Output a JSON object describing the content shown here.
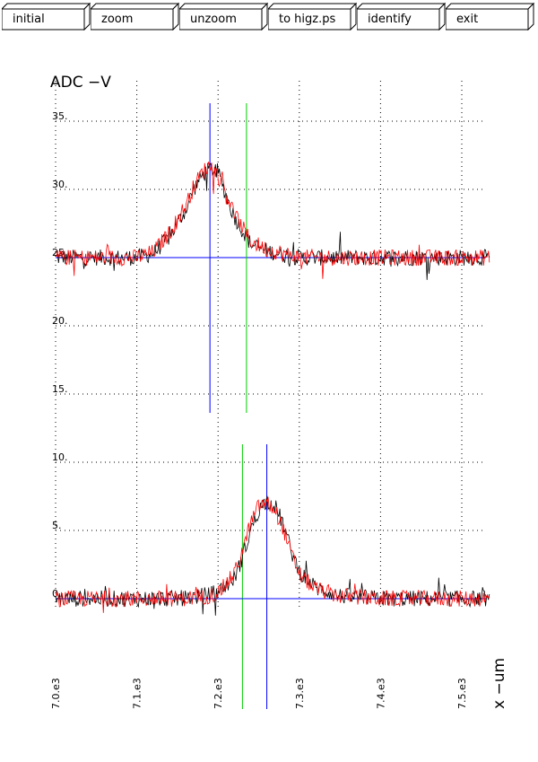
{
  "toolbar": {
    "buttons": [
      {
        "label": "initial"
      },
      {
        "label": "zoom"
      },
      {
        "label": "unzoom"
      },
      {
        "label": "to higz.ps"
      },
      {
        "label": "identify"
      },
      {
        "label": "exit"
      }
    ]
  },
  "colors": {
    "trace_a": "#000000",
    "trace_b": "#ff0000",
    "marker_blue": "#0000ff",
    "marker_green": "#00cc00",
    "grid": "#000000"
  },
  "chart_data": {
    "type": "line",
    "ylabel": "ADC  −V",
    "xlabel": "x  −um",
    "grid": true,
    "xlim": [
      7000,
      7550
    ],
    "ylim": [
      -4,
      37
    ],
    "x_ticks": [
      "7.0.e3",
      "7.1.e3",
      "7.2.e3",
      "7.3.e3",
      "7.4.e3",
      "7.5.e3"
    ],
    "x_tick_values": [
      7000,
      7100,
      7200,
      7300,
      7400,
      7500
    ],
    "y_ticks": [
      "0.",
      "5.",
      "10.",
      "15.",
      "20.",
      "25.",
      "30.",
      "35."
    ],
    "y_tick_values": [
      0,
      5,
      10,
      15,
      20,
      25,
      30,
      35
    ],
    "panels": [
      {
        "name": "upper",
        "baseline": 25,
        "peak_x": 7190,
        "peak_y": 31.5,
        "series": [
          {
            "color": "black",
            "x": [
              7000,
              7050,
              7100,
              7120,
              7140,
              7160,
              7170,
              7180,
              7190,
              7200,
              7210,
              7220,
              7230,
              7240,
              7260,
              7280,
              7300,
              7350,
              7400,
              7450,
              7500,
              7550
            ],
            "y": [
              25,
              25,
              25,
              25.3,
              26.5,
              28.5,
              30,
              31,
              31.5,
              31.3,
              29.5,
              28,
              27,
              26,
              25.5,
              25.2,
              25,
              25,
              25,
              25,
              25,
              25
            ]
          },
          {
            "color": "red",
            "x": [
              7000,
              7050,
              7100,
              7120,
              7140,
              7160,
              7170,
              7180,
              7190,
              7200,
              7210,
              7220,
              7230,
              7240,
              7260,
              7280,
              7300,
              7350,
              7400,
              7450,
              7500,
              7550
            ],
            "y": [
              25,
              25,
              25,
              25.4,
              26.8,
              28.8,
              30.2,
              31.2,
              31.8,
              31.0,
              29.8,
              28.2,
              27.2,
              26.2,
              25.6,
              25.3,
              25,
              25,
              25,
              25,
              25,
              25
            ]
          }
        ],
        "markers": [
          {
            "color": "blue",
            "x": 7190,
            "y": 25
          },
          {
            "color": "green",
            "x": 7235
          }
        ]
      },
      {
        "name": "lower",
        "baseline": 0,
        "peak_x": 7260,
        "peak_y": 7.2,
        "series": [
          {
            "color": "black",
            "x": [
              7000,
              7050,
              7100,
              7150,
              7180,
              7200,
              7220,
              7230,
              7240,
              7250,
              7260,
              7270,
              7280,
              7290,
              7300,
              7320,
              7350,
              7400,
              7450,
              7500,
              7550
            ],
            "y": [
              0,
              0,
              0,
              0,
              0.2,
              0.5,
              1.5,
              3,
              5,
              6.5,
              7.2,
              6.8,
              5.5,
              3.5,
              2,
              0.8,
              0.2,
              0,
              0,
              0,
              0
            ]
          },
          {
            "color": "red",
            "x": [
              7000,
              7050,
              7100,
              7150,
              7180,
              7200,
              7220,
              7230,
              7240,
              7250,
              7260,
              7270,
              7280,
              7290,
              7300,
              7320,
              7350,
              7400,
              7450,
              7500,
              7550
            ],
            "y": [
              0,
              0,
              0,
              0,
              0.1,
              0.4,
              1.8,
              3.5,
              5.5,
              6.8,
              7.0,
              6.5,
              5.2,
              3.3,
              1.8,
              0.7,
              0.2,
              0,
              0,
              0,
              0
            ]
          }
        ],
        "markers": [
          {
            "color": "green",
            "x": 7230
          },
          {
            "color": "blue",
            "x": 7260,
            "y": 0
          }
        ]
      }
    ]
  }
}
